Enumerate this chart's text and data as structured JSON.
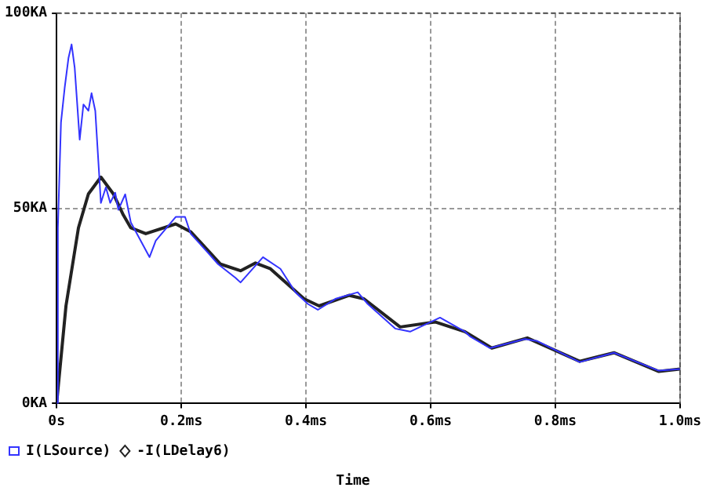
{
  "chart_data": {
    "type": "line",
    "xlabel": "Time",
    "xlim": [
      0,
      1
    ],
    "ylim": [
      0,
      100
    ],
    "xticks": [
      {
        "value": 0,
        "label": "0s"
      },
      {
        "value": 0.2,
        "label": "0.2ms"
      },
      {
        "value": 0.4,
        "label": "0.4ms"
      },
      {
        "value": 0.6,
        "label": "0.6ms"
      },
      {
        "value": 0.8,
        "label": "0.8ms"
      },
      {
        "value": 1,
        "label": "1.0ms"
      }
    ],
    "yticks": [
      {
        "value": 0,
        "label": "0KA"
      },
      {
        "value": 50,
        "label": "50KA"
      },
      {
        "value": 100,
        "label": "100KA"
      }
    ],
    "grid": true,
    "legend": "bottom left",
    "marker": "none",
    "line_style": "solid",
    "series": [
      {
        "name": "I(LSource)",
        "color": "#3333ff",
        "x": [
          0,
          0.002,
          0.007,
          0.013,
          0.019,
          0.024,
          0.029,
          0.037,
          0.043,
          0.051,
          0.056,
          0.062,
          0.071,
          0.079,
          0.086,
          0.094,
          0.099,
          0.11,
          0.119,
          0.149,
          0.159,
          0.191,
          0.206,
          0.215,
          0.239,
          0.259,
          0.287,
          0.295,
          0.331,
          0.359,
          0.383,
          0.403,
          0.419,
          0.447,
          0.483,
          0.499,
          0.543,
          0.567,
          0.615,
          0.655,
          0.663,
          0.695,
          0.751,
          0.771,
          0.839,
          0.894,
          0.966,
          1.0
        ],
        "values": [
          0,
          45,
          72,
          81,
          88.5,
          92,
          86,
          67.6,
          76.6,
          75,
          79.5,
          75,
          51.4,
          55.4,
          51.4,
          54,
          49.6,
          53.6,
          46.4,
          37.5,
          41.7,
          47.8,
          47.8,
          43.5,
          39.3,
          35.7,
          32.2,
          31,
          37.5,
          34.5,
          28.5,
          25.5,
          24,
          26.8,
          28.5,
          25.5,
          19.2,
          18.4,
          22,
          18.4,
          17.2,
          14.2,
          16.5,
          16,
          10.6,
          13,
          8.4,
          8.8
        ]
      },
      {
        "name": "-I(LDelay6)",
        "color": "#222222",
        "x": [
          0,
          0.015,
          0.035,
          0.051,
          0.071,
          0.091,
          0.107,
          0.119,
          0.143,
          0.191,
          0.215,
          0.263,
          0.295,
          0.319,
          0.343,
          0.397,
          0.421,
          0.469,
          0.493,
          0.551,
          0.607,
          0.655,
          0.698,
          0.755,
          0.839,
          0.894,
          0.966,
          1.0
        ],
        "values": [
          0,
          25,
          45,
          53.7,
          58,
          53.7,
          48.3,
          45,
          43.5,
          46,
          44,
          35.7,
          34,
          36,
          34.5,
          26.8,
          25,
          27.7,
          26.8,
          19.6,
          20.9,
          18.4,
          14.2,
          16.8,
          10.8,
          13,
          8.2,
          8.8
        ]
      }
    ]
  }
}
